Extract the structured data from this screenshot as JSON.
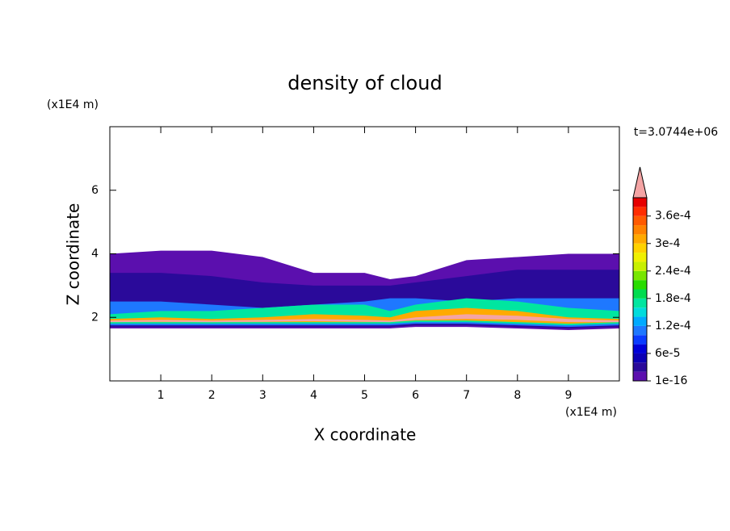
{
  "chart_data": {
    "type": "contour",
    "title": "density of cloud",
    "x_label": "X coordinate",
    "y_label": "Z coordinate",
    "x_unit": "(x1E4 m)",
    "y_unit": "(x1E4 m)",
    "time_label": "t=3.0744e+06",
    "xlim": [
      0,
      10
    ],
    "ylim": [
      0,
      8
    ],
    "xticks": [
      1,
      2,
      3,
      4,
      5,
      6,
      7,
      8,
      9
    ],
    "yticks": [
      2,
      4,
      6
    ],
    "clim": [
      1e-16,
      0.0004
    ],
    "colorbar_ticks": [
      1e-16,
      {
        "value": 6e-05,
        "label": "6e-5"
      },
      {
        "value": 0.00012,
        "label": "1.2e-4"
      },
      {
        "value": 0.00018,
        "label": "1.8e-4"
      },
      {
        "value": 0.00024,
        "label": "2.4e-4"
      },
      {
        "value": 0.0003,
        "label": "3e-4"
      },
      {
        "value": 0.00036,
        "label": "3.6e-4"
      }
    ],
    "colors": [
      "#5b0fae",
      "#2a0a9a",
      "#0c00b4",
      "#0000d8",
      "#0a3cff",
      "#1e78ff",
      "#00aaff",
      "#00dcdc",
      "#00e6a0",
      "#00dc50",
      "#28dc00",
      "#78e600",
      "#c8f000",
      "#f0f000",
      "#ffd200",
      "#ffaa00",
      "#ff8200",
      "#ff5a00",
      "#ff2d00",
      "#e60000"
    ],
    "extend_color": "#f4a4a4",
    "layers": [
      {
        "color": "#5b0fae",
        "x": [
          0,
          1,
          2,
          3,
          4,
          5,
          5.5,
          6,
          7,
          8,
          9,
          10
        ],
        "top": [
          4.0,
          4.1,
          4.1,
          3.9,
          3.4,
          3.4,
          3.2,
          3.3,
          3.8,
          3.9,
          4.0,
          4.0
        ],
        "bottom": [
          1.65,
          1.65,
          1.65,
          1.65,
          1.65,
          1.65,
          1.65,
          1.7,
          1.7,
          1.65,
          1.6,
          1.65
        ]
      },
      {
        "color": "#2a0a9a",
        "x": [
          0,
          1,
          2,
          3,
          4,
          5,
          5.5,
          6,
          7,
          8,
          9,
          10
        ],
        "top": [
          3.4,
          3.4,
          3.3,
          3.1,
          3.0,
          3.0,
          3.0,
          3.1,
          3.3,
          3.5,
          3.5,
          3.5
        ],
        "bottom": [
          1.7,
          1.7,
          1.7,
          1.7,
          1.7,
          1.7,
          1.7,
          1.75,
          1.75,
          1.7,
          1.65,
          1.7
        ]
      },
      {
        "color": "#1e78ff",
        "x": [
          0,
          1,
          2,
          3,
          4,
          5,
          5.5,
          6,
          7,
          8,
          9,
          10
        ],
        "top": [
          2.5,
          2.5,
          2.4,
          2.3,
          2.4,
          2.5,
          2.6,
          2.6,
          2.5,
          2.6,
          2.6,
          2.6
        ],
        "bottom": [
          1.75,
          1.75,
          1.75,
          1.75,
          1.75,
          1.75,
          1.75,
          1.8,
          1.8,
          1.75,
          1.7,
          1.75
        ]
      },
      {
        "color": "#00e6a0",
        "x": [
          0,
          1,
          2,
          3,
          4,
          5,
          5.5,
          6,
          7,
          8,
          9,
          10
        ],
        "top": [
          2.1,
          2.2,
          2.2,
          2.3,
          2.4,
          2.4,
          2.2,
          2.4,
          2.6,
          2.5,
          2.3,
          2.2
        ],
        "bottom": [
          1.8,
          1.8,
          1.8,
          1.8,
          1.8,
          1.8,
          1.8,
          1.85,
          1.85,
          1.8,
          1.75,
          1.8
        ]
      },
      {
        "color": "#ffaa00",
        "x": [
          0,
          1,
          2,
          3,
          4,
          5,
          5.5,
          6,
          7,
          8,
          9,
          10
        ],
        "top": [
          1.95,
          2.0,
          1.95,
          2.0,
          2.1,
          2.05,
          2.0,
          2.2,
          2.3,
          2.2,
          2.0,
          1.95
        ],
        "bottom": [
          1.85,
          1.85,
          1.85,
          1.85,
          1.85,
          1.85,
          1.85,
          1.9,
          1.9,
          1.85,
          1.8,
          1.85
        ]
      },
      {
        "color": "#f4a4a4",
        "x": [
          0,
          1,
          2,
          3,
          4,
          5,
          5.5,
          6,
          7,
          8,
          9,
          10
        ],
        "top": [
          1.9,
          1.92,
          1.9,
          1.92,
          1.95,
          1.92,
          1.9,
          2.0,
          2.1,
          2.05,
          1.95,
          1.9
        ],
        "bottom": [
          1.85,
          1.86,
          1.85,
          1.86,
          1.88,
          1.86,
          1.85,
          1.92,
          1.95,
          1.92,
          1.85,
          1.85
        ]
      }
    ]
  }
}
